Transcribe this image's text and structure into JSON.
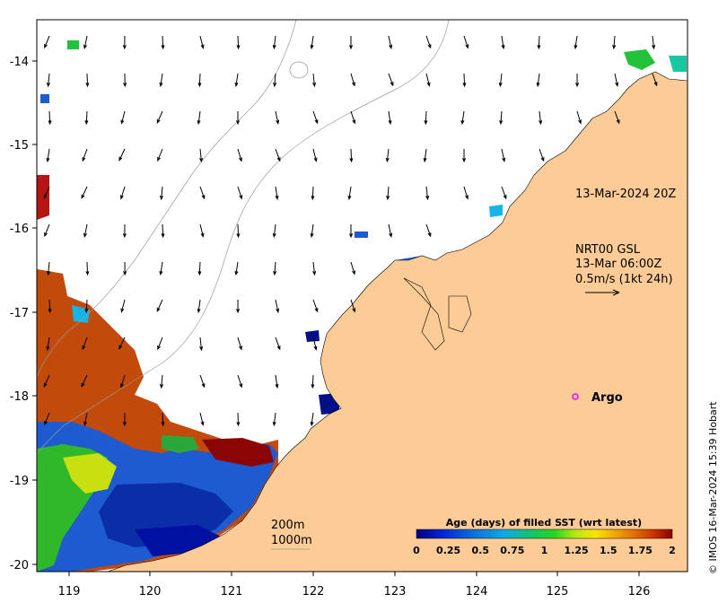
{
  "map": {
    "lon_ticks": [
      "119",
      "120",
      "121",
      "122",
      "123",
      "124",
      "125",
      "126"
    ],
    "lat_ticks": [
      "-14",
      "-15",
      "-16",
      "-17",
      "-18",
      "-19",
      "-20"
    ],
    "timestamp_label": "13-Mar-2024 20Z",
    "current_info": {
      "line1": "NRT00 GSL",
      "line2": "13-Mar 06:00Z",
      "line3": "0.5m/s (1kt 24h)"
    },
    "argo_label": "Argo",
    "isobaths": [
      "200m",
      "1000m"
    ],
    "colorbar": {
      "title": "Age (days) of filled SST (wrt latest)",
      "tick_labels": [
        "0",
        "0.25",
        "0.5",
        "0.75",
        "1",
        "1.25",
        "1.5",
        "1.75",
        "2"
      ],
      "colors": [
        "#00007f",
        "#0024d8",
        "#0a6edc",
        "#10a8e8",
        "#13c760",
        "#27d420",
        "#b4e812",
        "#f8e408",
        "#f0a400",
        "#e06800",
        "#c83000",
        "#8b0000"
      ]
    },
    "copyright": "© IMOS 16-Mar-2024 15:39 Hobart",
    "colors": {
      "land": "#fdcb95",
      "ocean": "#ffffff"
    }
  }
}
